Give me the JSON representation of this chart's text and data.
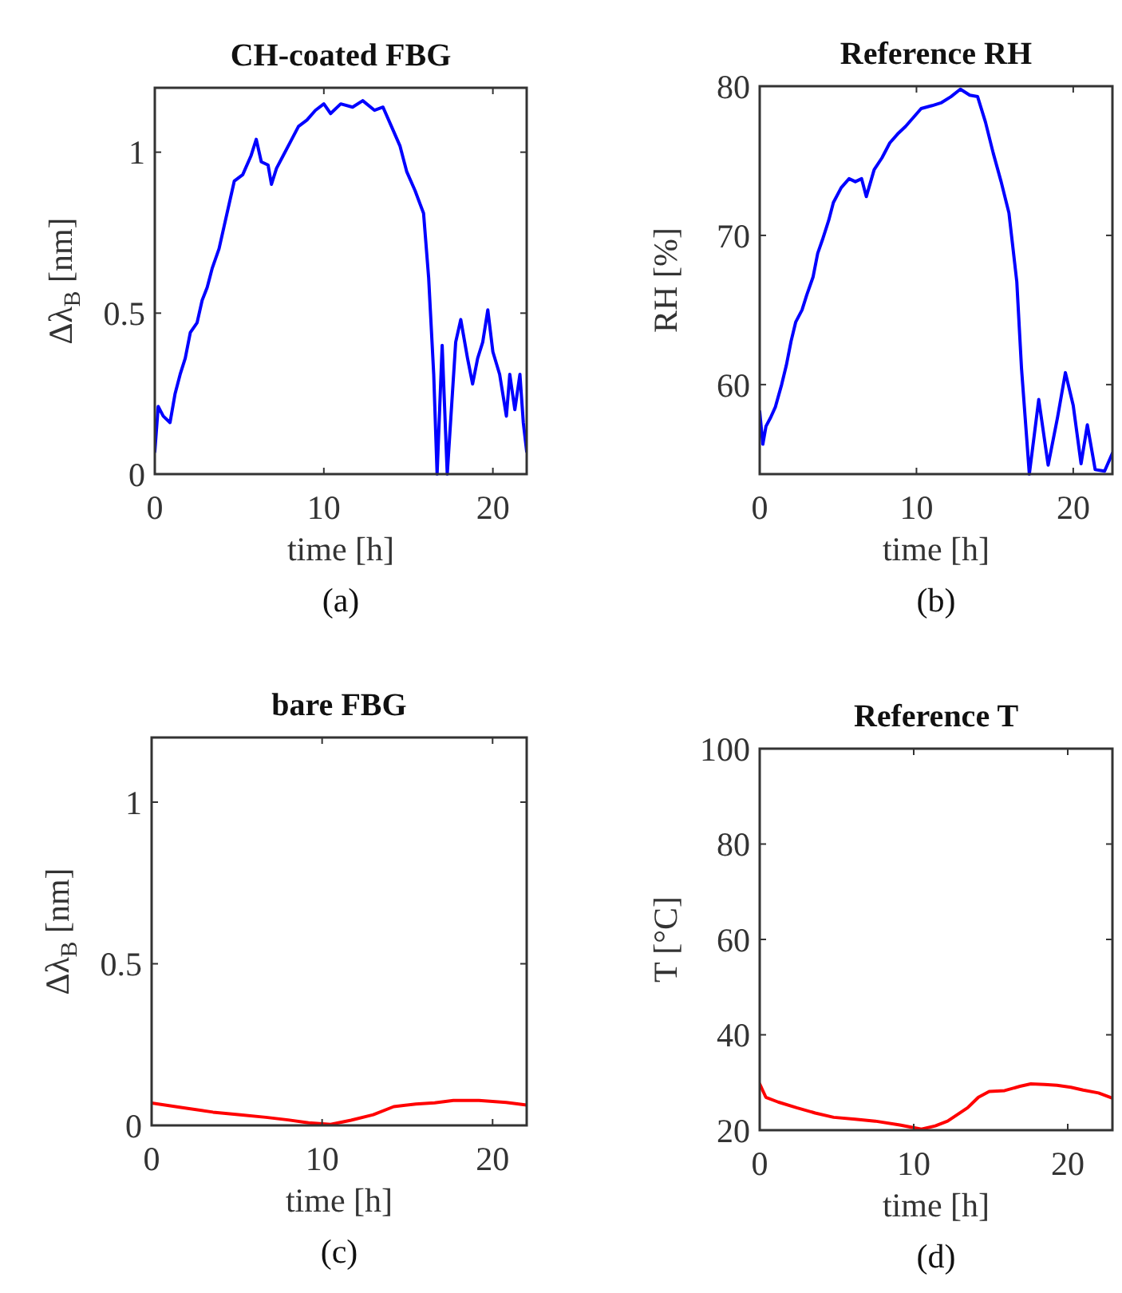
{
  "chart_data": [
    {
      "type": "line",
      "title": "CH-coated FBG",
      "xlabel": "time [h]",
      "ylabel": "Δλ$_{B}$ [nm]",
      "annotations": [
        "(a)"
      ],
      "xlim": [
        0,
        22
      ],
      "ylim": [
        0,
        1.2
      ],
      "xticks": [
        0,
        10,
        20
      ],
      "yticks": [
        0,
        0.5,
        1
      ],
      "series": [
        {
          "color": "#0000ff",
          "x": [
            0,
            0.2,
            0.5,
            0.9,
            1.2,
            1.5,
            1.8,
            2.1,
            2.5,
            2.8,
            3.1,
            3.4,
            3.8,
            4.1,
            4.4,
            4.7,
            5.2,
            5.7,
            6.0,
            6.3,
            6.7,
            6.9,
            7.2,
            7.6,
            8.0,
            8.5,
            9.0,
            9.5,
            10.0,
            10.4,
            11.0,
            11.7,
            12.3,
            13,
            13.5,
            14,
            14.5,
            14.9,
            15.4,
            15.9,
            16.2,
            16.5,
            16.7,
            17,
            17.3,
            17.8,
            18.1,
            18.5,
            18.8,
            19.1,
            19.4,
            19.7,
            20.0,
            20.4,
            20.8,
            21.0,
            21.3,
            21.6,
            21.8,
            22
          ],
          "values": [
            0.07,
            0.21,
            0.18,
            0.16,
            0.25,
            0.31,
            0.36,
            0.44,
            0.47,
            0.54,
            0.58,
            0.64,
            0.7,
            0.77,
            0.84,
            0.91,
            0.93,
            0.99,
            1.04,
            0.97,
            0.96,
            0.9,
            0.95,
            0.99,
            1.03,
            1.08,
            1.1,
            1.13,
            1.15,
            1.12,
            1.15,
            1.14,
            1.16,
            1.13,
            1.14,
            1.08,
            1.02,
            0.94,
            0.88,
            0.81,
            0.61,
            0.31,
            0,
            0.4,
            0,
            0.41,
            0.48,
            0.36,
            0.28,
            0.36,
            0.41,
            0.51,
            0.38,
            0.31,
            0.18,
            0.31,
            0.2,
            0.31,
            0.16,
            0.07
          ]
        }
      ]
    },
    {
      "type": "line",
      "title": "Reference RH",
      "xlabel": "time [h]",
      "ylabel": "RH [%]",
      "annotations": [
        "(b)"
      ],
      "xlim": [
        0,
        22.5
      ],
      "ylim": [
        54,
        80
      ],
      "xticks": [
        0,
        10,
        20
      ],
      "yticks": [
        60,
        70,
        80
      ],
      "series": [
        {
          "color": "#0000ff",
          "x": [
            0,
            0.2,
            0.4,
            0.7,
            1.0,
            1.4,
            1.7,
            2.0,
            2.3,
            2.7,
            3.0,
            3.4,
            3.7,
            4.0,
            4.4,
            4.7,
            5.2,
            5.7,
            6.1,
            6.5,
            6.8,
            7.3,
            7.8,
            8.3,
            8.8,
            9.3,
            9.8,
            10.3,
            11.0,
            11.6,
            12.2,
            12.8,
            13.4,
            13.9,
            14.4,
            14.9,
            15.4,
            15.9,
            16.4,
            16.7,
            17.2,
            17.8,
            18.4,
            19.0,
            19.5,
            20,
            20.5,
            20.9,
            21.4,
            22,
            22.5
          ],
          "values": [
            58.2,
            56.0,
            57.2,
            57.8,
            58.5,
            60,
            61.3,
            62.9,
            64.2,
            65,
            66,
            67.2,
            68.8,
            69.7,
            71,
            72.2,
            73.2,
            73.8,
            73.6,
            73.8,
            72.6,
            74.4,
            75.2,
            76.2,
            76.8,
            77.3,
            77.9,
            78.5,
            78.7,
            78.9,
            79.3,
            79.8,
            79.4,
            79.3,
            77.6,
            75.5,
            73.6,
            71.5,
            66.9,
            61.1,
            54,
            59,
            54.6,
            57.8,
            60.8,
            58.6,
            54.7,
            57.3,
            54.3,
            54.2,
            55.4
          ]
        }
      ]
    },
    {
      "type": "line",
      "title": "bare FBG",
      "xlabel": "time [h]",
      "ylabel": "Δλ$_{B}$ [nm]",
      "annotations": [
        "(c)"
      ],
      "xlim": [
        0,
        22
      ],
      "ylim": [
        0,
        1.2
      ],
      "xticks": [
        0,
        10,
        20
      ],
      "yticks": [
        0,
        0.5,
        1
      ],
      "series": [
        {
          "color": "#ff0000",
          "x": [
            0,
            1.8,
            3.6,
            5.2,
            6.7,
            8.0,
            9.2,
            10.5,
            11.7,
            13,
            14.2,
            15.5,
            16.6,
            17.7,
            19.2,
            20.8,
            22
          ],
          "values": [
            0.069,
            0.055,
            0.041,
            0.033,
            0.025,
            0.017,
            0.008,
            0.003,
            0.016,
            0.033,
            0.058,
            0.066,
            0.07,
            0.077,
            0.077,
            0.071,
            0.063
          ]
        }
      ]
    },
    {
      "type": "line",
      "title": "Reference T",
      "xlabel": "time [h]",
      "ylabel": "T [°C]",
      "annotations": [
        "(d)"
      ],
      "xlim": [
        0,
        22.9
      ],
      "ylim": [
        20,
        100
      ],
      "xticks": [
        0,
        10,
        20
      ],
      "yticks": [
        20,
        40,
        60,
        80,
        100
      ],
      "series": [
        {
          "color": "#ff0000",
          "x": [
            0,
            0.4,
            1.2,
            2.4,
            3.6,
            4.8,
            6.2,
            7.5,
            9.1,
            10.5,
            11.4,
            12.2,
            13.5,
            14.2,
            14.9,
            15.9,
            16.9,
            17.6,
            18.5,
            19.3,
            20.2,
            21,
            22,
            22.9
          ],
          "values": [
            29.7,
            26.9,
            25.9,
            24.7,
            23.6,
            22.7,
            22.3,
            21.9,
            21.1,
            20.2,
            20.9,
            21.9,
            24.7,
            26.9,
            28.1,
            28.3,
            29.2,
            29.7,
            29.6,
            29.4,
            29.0,
            28.4,
            27.8,
            26.7
          ]
        }
      ]
    }
  ]
}
